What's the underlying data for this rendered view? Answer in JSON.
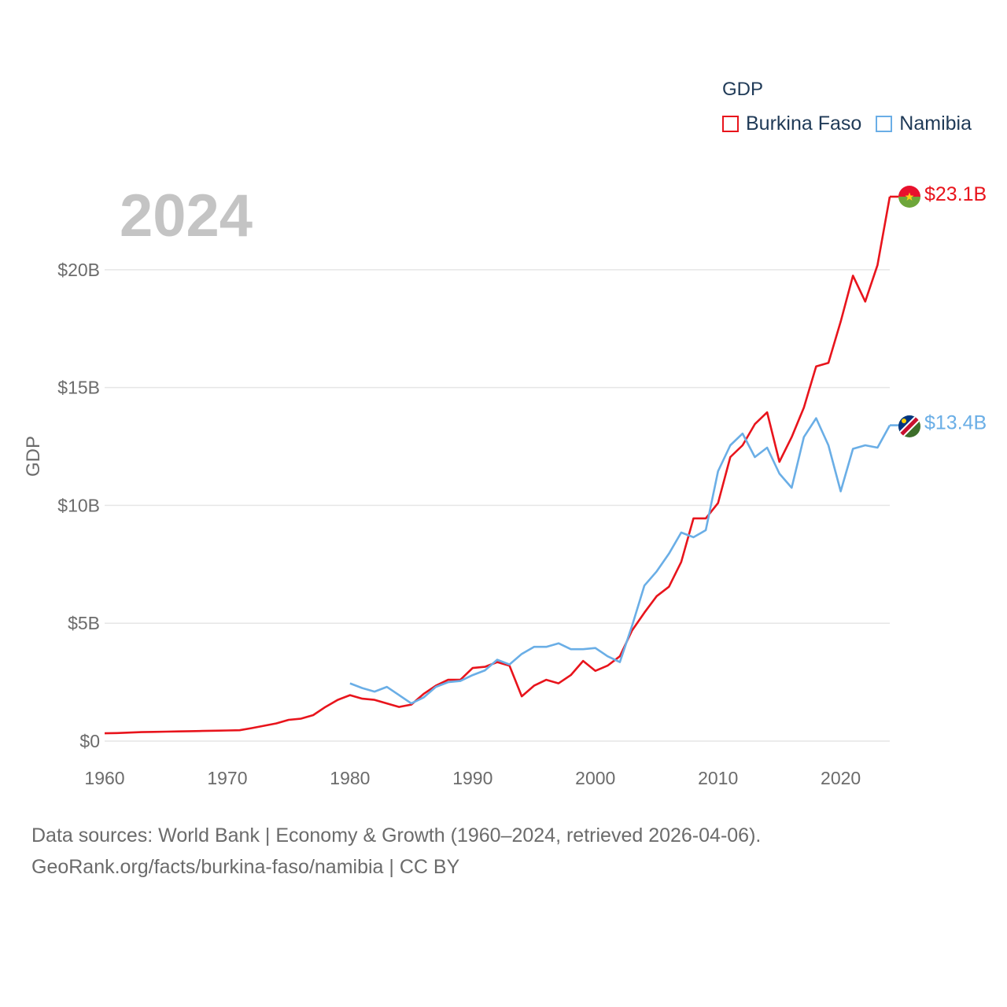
{
  "chart_data": {
    "type": "line",
    "title": "",
    "year_label": "2024",
    "xlabel": "",
    "ylabel": "GDP",
    "xlim": [
      1960,
      2024
    ],
    "ylim": [
      0,
      23.1
    ],
    "x_ticks": [
      1960,
      1970,
      1980,
      1990,
      2000,
      2010,
      2020
    ],
    "x_tick_labels": [
      "1960",
      "1970",
      "1980",
      "1990",
      "2000",
      "2010",
      "2020"
    ],
    "y_ticks": [
      0,
      5,
      10,
      15,
      20
    ],
    "y_tick_labels": [
      "$0",
      "$5B",
      "$10B",
      "$15B",
      "$20B"
    ],
    "legend_title": "GDP",
    "grid": true,
    "series": [
      {
        "name": "Burkina Faso",
        "color": "#e8141c",
        "end_label": "$23.1B",
        "x": [
          1960,
          1961,
          1962,
          1963,
          1964,
          1965,
          1966,
          1967,
          1968,
          1969,
          1970,
          1971,
          1972,
          1973,
          1974,
          1975,
          1976,
          1977,
          1978,
          1979,
          1980,
          1981,
          1982,
          1983,
          1984,
          1985,
          1986,
          1987,
          1988,
          1989,
          1990,
          1991,
          1992,
          1993,
          1994,
          1995,
          1996,
          1997,
          1998,
          1999,
          2000,
          2001,
          2002,
          2003,
          2004,
          2005,
          2006,
          2007,
          2008,
          2009,
          2010,
          2011,
          2012,
          2013,
          2014,
          2015,
          2016,
          2017,
          2018,
          2019,
          2020,
          2021,
          2022,
          2023,
          2024
        ],
        "values": [
          0.33,
          0.34,
          0.36,
          0.38,
          0.39,
          0.4,
          0.41,
          0.42,
          0.43,
          0.44,
          0.45,
          0.46,
          0.55,
          0.65,
          0.75,
          0.9,
          0.95,
          1.1,
          1.45,
          1.75,
          1.95,
          1.8,
          1.75,
          1.6,
          1.45,
          1.55,
          2.0,
          2.35,
          2.6,
          2.6,
          3.1,
          3.15,
          3.35,
          3.2,
          1.9,
          2.35,
          2.6,
          2.45,
          2.8,
          3.4,
          2.98,
          3.2,
          3.6,
          4.7,
          5.45,
          6.15,
          6.55,
          7.6,
          9.45,
          9.45,
          10.1,
          12.05,
          12.55,
          13.45,
          13.95,
          11.85,
          12.9,
          14.15,
          15.9,
          16.05,
          17.8,
          19.75,
          18.65,
          20.2,
          23.1
        ]
      },
      {
        "name": "Namibia",
        "color": "#6aaee6",
        "end_label": "$13.4B",
        "x": [
          1980,
          1981,
          1982,
          1983,
          1984,
          1985,
          1986,
          1987,
          1988,
          1989,
          1990,
          1991,
          1992,
          1993,
          1994,
          1995,
          1996,
          1997,
          1998,
          1999,
          2000,
          2001,
          2002,
          2003,
          2004,
          2005,
          2006,
          2007,
          2008,
          2009,
          2010,
          2011,
          2012,
          2013,
          2014,
          2015,
          2016,
          2017,
          2018,
          2019,
          2020,
          2021,
          2022,
          2023,
          2024
        ],
        "values": [
          2.45,
          2.25,
          2.1,
          2.3,
          1.95,
          1.6,
          1.85,
          2.3,
          2.5,
          2.55,
          2.8,
          3.0,
          3.45,
          3.25,
          3.7,
          4.0,
          4.0,
          4.15,
          3.9,
          3.9,
          3.95,
          3.6,
          3.35,
          4.9,
          6.6,
          7.2,
          7.95,
          8.85,
          8.65,
          8.95,
          11.45,
          12.55,
          13.05,
          12.05,
          12.45,
          11.35,
          10.75,
          12.9,
          13.7,
          12.55,
          10.6,
          12.4,
          12.55,
          12.45,
          13.4
        ]
      }
    ]
  },
  "footer": {
    "line1": "Data sources: World Bank | Economy & Growth (1960–2024, retrieved 2026-04-06).",
    "line2": "GeoRank.org/facts/burkina-faso/namibia | CC BY"
  }
}
